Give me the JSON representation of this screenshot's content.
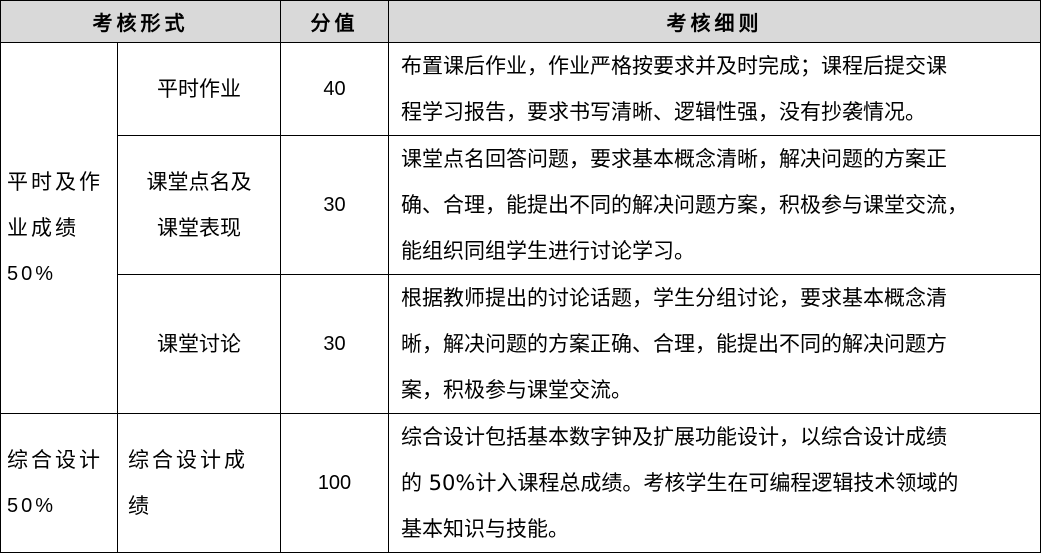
{
  "header": {
    "form": "考核形式",
    "score": "分值",
    "rules": "考核细则"
  },
  "groups": [
    {
      "category_lines": [
        "平时及作",
        "业成绩",
        "50%"
      ],
      "items": [
        {
          "name_lines": [
            "平时作业"
          ],
          "score": "40",
          "desc_lines": [
            "布置课后作业，作业严格按要求并及时完成；课程后提交课",
            "程学习报告，要求书写清晰、逻辑性强，没有抄袭情况。"
          ]
        },
        {
          "name_lines": [
            "课堂点名及",
            "课堂表现"
          ],
          "score": "30",
          "desc_lines": [
            "课堂点名回答问题，要求基本概念清晰，解决问题的方案正",
            "确、合理，能提出不同的解决问题方案，积极参与课堂交流，",
            "能组织同组学生进行讨论学习。"
          ]
        },
        {
          "name_lines": [
            "课堂讨论"
          ],
          "score": "30",
          "desc_lines": [
            "根据教师提出的讨论话题，学生分组讨论，要求基本概念清",
            "晰，解决问题的方案正确、合理，能提出不同的解决问题方",
            "案，积极参与课堂交流。"
          ]
        }
      ]
    },
    {
      "category_lines": [
        "综合设计",
        "50%"
      ],
      "items": [
        {
          "name_lines": [
            "综合设计成",
            "绩"
          ],
          "score": "100",
          "desc_lines": [
            "综合设计包括基本数字钟及扩展功能设计，以综合设计成绩",
            "的 50%计入课程总成绩。考核学生在可编程逻辑技术领域的",
            "基本知识与技能。"
          ]
        }
      ]
    }
  ]
}
